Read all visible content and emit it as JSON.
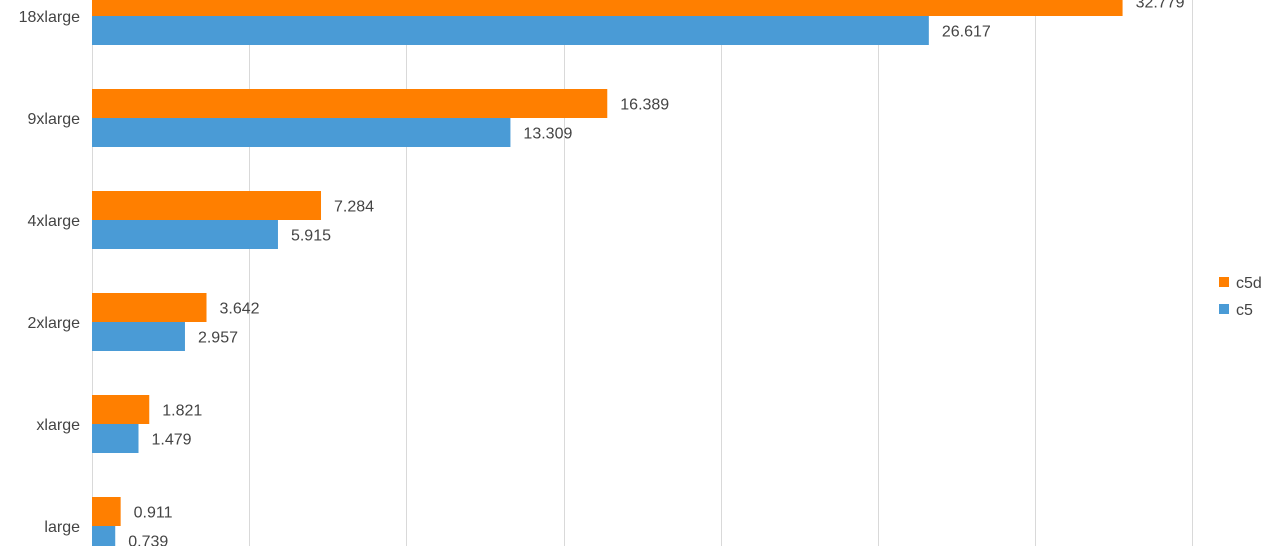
{
  "chart_data": {
    "type": "bar",
    "orientation": "horizontal",
    "categories": [
      "18xlarge",
      "9xlarge",
      "4xlarge",
      "2xlarge",
      "xlarge",
      "large"
    ],
    "series": [
      {
        "name": "c5d",
        "color": "#ff7f00",
        "values": [
          32.779,
          16.389,
          7.284,
          3.642,
          1.821,
          0.911
        ],
        "labels": [
          "32.779",
          "16.389",
          "7.284",
          "3.642",
          "1.821",
          "0.911"
        ]
      },
      {
        "name": "c5",
        "color": "#4a9bd6",
        "values": [
          26.617,
          13.309,
          5.915,
          2.957,
          1.479,
          0.739
        ],
        "labels": [
          "26.617",
          "13.309",
          "5.915",
          "2.957",
          "1.479",
          "0.739"
        ]
      }
    ],
    "xlim": [
      0,
      35
    ],
    "x_grid_step": 5,
    "grid": true,
    "legend_position": "right"
  }
}
